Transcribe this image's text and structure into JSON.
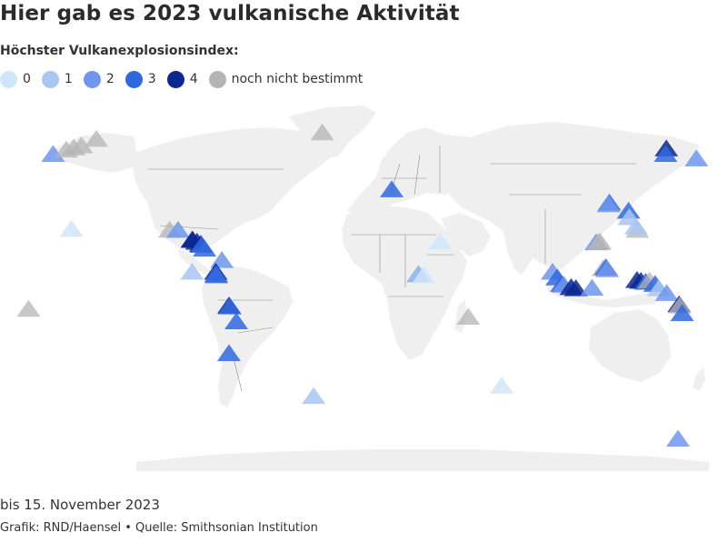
{
  "header": {
    "title": "Hier gab es 2023 vulkanische Aktivität"
  },
  "legend": {
    "title": "Höchster Vulkanexplosionsindex:",
    "items": [
      {
        "label": "0",
        "color": "#cfe6f8"
      },
      {
        "label": "1",
        "color": "#a9c6f2"
      },
      {
        "label": "2",
        "color": "#6f95ec"
      },
      {
        "label": "3",
        "color": "#3068e0"
      },
      {
        "label": "4",
        "color": "#0b2791"
      },
      {
        "label": "noch nicht bestimmt",
        "color": "#b4b4b4"
      }
    ]
  },
  "map": {
    "land_color": "#efefef",
    "border_color": "#8c8c8c",
    "volcanoes": [
      {
        "region": "Alaska West",
        "lat": 54,
        "lon": -165,
        "vei": "2"
      },
      {
        "region": "Aleuten",
        "lat": 56,
        "lon": -158,
        "vei": "unbestimmt"
      },
      {
        "region": "Aleuten",
        "lat": 57,
        "lon": -154,
        "vei": "unbestimmt"
      },
      {
        "region": "Alaska",
        "lat": 58,
        "lon": -150,
        "vei": "unbestimmt"
      },
      {
        "region": "Alaska",
        "lat": 61,
        "lon": -142,
        "vei": "unbestimmt"
      },
      {
        "region": "Hawaii",
        "lat": 19.4,
        "lon": -155.3,
        "vei": "0"
      },
      {
        "region": "Mexiko",
        "lat": 19,
        "lon": -103,
        "vei": "unbestimmt"
      },
      {
        "region": "Mexiko",
        "lat": 19,
        "lon": -98.6,
        "vei": "2"
      },
      {
        "region": "Guatemala",
        "lat": 14.5,
        "lon": -91,
        "vei": "4"
      },
      {
        "region": "Guatemala",
        "lat": 14.3,
        "lon": -90.8,
        "vei": "4"
      },
      {
        "region": "El Salvador",
        "lat": 13.5,
        "lon": -88.5,
        "vei": "4"
      },
      {
        "region": "Nicaragua",
        "lat": 12.5,
        "lon": -86.5,
        "vei": "4"
      },
      {
        "region": "Nicaragua",
        "lat": 12,
        "lon": -86,
        "vei": "3"
      },
      {
        "region": "Costa Rica",
        "lat": 10.3,
        "lon": -84.5,
        "vei": "3"
      },
      {
        "region": "Kolumbien",
        "lat": 5,
        "lon": -75.3,
        "vei": "2"
      },
      {
        "region": "Ecuador",
        "lat": -0.4,
        "lon": -78.5,
        "vei": "4"
      },
      {
        "region": "Ecuador",
        "lat": -1.5,
        "lon": -78.4,
        "vei": "3"
      },
      {
        "region": "Ecuador",
        "lat": -2,
        "lon": -78.2,
        "vei": "3"
      },
      {
        "region": "Galapagos",
        "lat": -0.4,
        "lon": -91.1,
        "vei": "1"
      },
      {
        "region": "Peru",
        "lat": -16,
        "lon": -71.5,
        "vei": "4"
      },
      {
        "region": "Peru",
        "lat": -16.4,
        "lon": -71,
        "vei": "3"
      },
      {
        "region": "Chile",
        "lat": -23.3,
        "lon": -67.6,
        "vei": "3"
      },
      {
        "region": "Chile",
        "lat": -38,
        "lon": -71.5,
        "vei": "3"
      },
      {
        "region": "Pazifik",
        "lat": -17.5,
        "lon": -178,
        "vei": "unbestimmt"
      },
      {
        "region": "Island",
        "lat": 64,
        "lon": -21.9,
        "vei": "unbestimmt"
      },
      {
        "region": "Italien",
        "lat": 37.7,
        "lon": 15,
        "vei": "3"
      },
      {
        "region": "Äthiopien",
        "lat": 13.6,
        "lon": 40.7,
        "vei": "0"
      },
      {
        "region": "Ostafrika",
        "lat": -1.5,
        "lon": 29.2,
        "vei": "3"
      },
      {
        "region": "Ostafrika",
        "lat": -1.4,
        "lon": 29.4,
        "vei": "1"
      },
      {
        "region": "Ostafrika",
        "lat": -2,
        "lon": 32,
        "vei": "0"
      },
      {
        "region": "Indischer Ozean",
        "lat": -21.2,
        "lon": 55.7,
        "vei": "unbestimmt"
      },
      {
        "region": "Südpolarmeer",
        "lat": -53,
        "lon": 73.5,
        "vei": "0"
      },
      {
        "region": "Südsandwichinseln",
        "lat": -57.8,
        "lon": -26.5,
        "vei": "1"
      },
      {
        "region": "Antarktis",
        "lat": -77.5,
        "lon": 167.2,
        "vei": "2"
      },
      {
        "region": "Kamtschatka",
        "lat": 56.6,
        "lon": 161,
        "vei": "4"
      },
      {
        "region": "Kamtschatka",
        "lat": 54,
        "lon": 160.6,
        "vei": "3"
      },
      {
        "region": "Aleuten West",
        "lat": 52,
        "lon": 177,
        "vei": "2"
      },
      {
        "region": "Japan",
        "lat": 31.6,
        "lon": 130.7,
        "vei": "3"
      },
      {
        "region": "Japan",
        "lat": 30.8,
        "lon": 130.3,
        "vei": "2"
      },
      {
        "region": "Japan",
        "lat": 27.8,
        "lon": 140.9,
        "vei": "3"
      },
      {
        "region": "Japan",
        "lat": 24.8,
        "lon": 141.3,
        "vei": "1"
      },
      {
        "region": "Marianen",
        "lat": 19,
        "lon": 145.5,
        "vei": "unbestimmt"
      },
      {
        "region": "Marianen",
        "lat": 20.5,
        "lon": 144.9,
        "vei": "1"
      },
      {
        "region": "Philippinen",
        "lat": 13.2,
        "lon": 123.7,
        "vei": "2"
      },
      {
        "region": "Philippinen",
        "lat": 13.6,
        "lon": 125.7,
        "vei": "unbestimmt"
      },
      {
        "region": "Philippinen",
        "lat": 13.3,
        "lon": 125,
        "vei": "unbestimmt"
      },
      {
        "region": "Indonesien",
        "lat": 1.3,
        "lon": 127.5,
        "vei": "unbestimmt"
      },
      {
        "region": "Indonesien",
        "lat": 1.7,
        "lon": 128.9,
        "vei": "3"
      },
      {
        "region": "Indonesien",
        "lat": 0.8,
        "lon": 129.5,
        "vei": "2"
      },
      {
        "region": "Sumatra",
        "lat": -0.4,
        "lon": 100.5,
        "vei": "2"
      },
      {
        "region": "Sumatra",
        "lat": -3,
        "lon": 103,
        "vei": "3"
      },
      {
        "region": "Java",
        "lat": -6,
        "lon": 105.4,
        "vei": "3"
      },
      {
        "region": "Java",
        "lat": -6.4,
        "lon": 106.5,
        "vei": "2"
      },
      {
        "region": "Java",
        "lat": -7.5,
        "lon": 110.4,
        "vei": "4"
      },
      {
        "region": "Java",
        "lat": -8,
        "lon": 112.9,
        "vei": "4"
      },
      {
        "region": "Sulawesi",
        "lat": -7.8,
        "lon": 121.5,
        "vei": "2"
      },
      {
        "region": "Papua-Neuguinea",
        "lat": -4.2,
        "lon": 145.4,
        "vei": "4"
      },
      {
        "region": "Papua-Neuguinea",
        "lat": -4.6,
        "lon": 147.5,
        "vei": "4"
      },
      {
        "region": "Papua-Neuguinea",
        "lat": -5,
        "lon": 150,
        "vei": "3"
      },
      {
        "region": "Papua-Neuguinea",
        "lat": -4.4,
        "lon": 152,
        "vei": "unbestimmt"
      },
      {
        "region": "Bougainville",
        "lat": -6,
        "lon": 155,
        "vei": "3"
      },
      {
        "region": "Salomonen",
        "lat": -8,
        "lon": 157,
        "vei": "1"
      },
      {
        "region": "Vanuatu",
        "lat": -10.2,
        "lon": 161.2,
        "vei": "2"
      },
      {
        "region": "Vanuatu",
        "lat": -15.4,
        "lon": 167.8,
        "vei": "4"
      },
      {
        "region": "Vanuatu",
        "lat": -16,
        "lon": 168.1,
        "vei": "unbestimmt"
      },
      {
        "region": "Vanuatu",
        "lat": -19.5,
        "lon": 169.4,
        "vei": "3"
      }
    ]
  },
  "footer": {
    "date": "bis 15. November 2023",
    "source": "Grafik: RND/Haensel • Quelle: Smithsonian Institution"
  }
}
